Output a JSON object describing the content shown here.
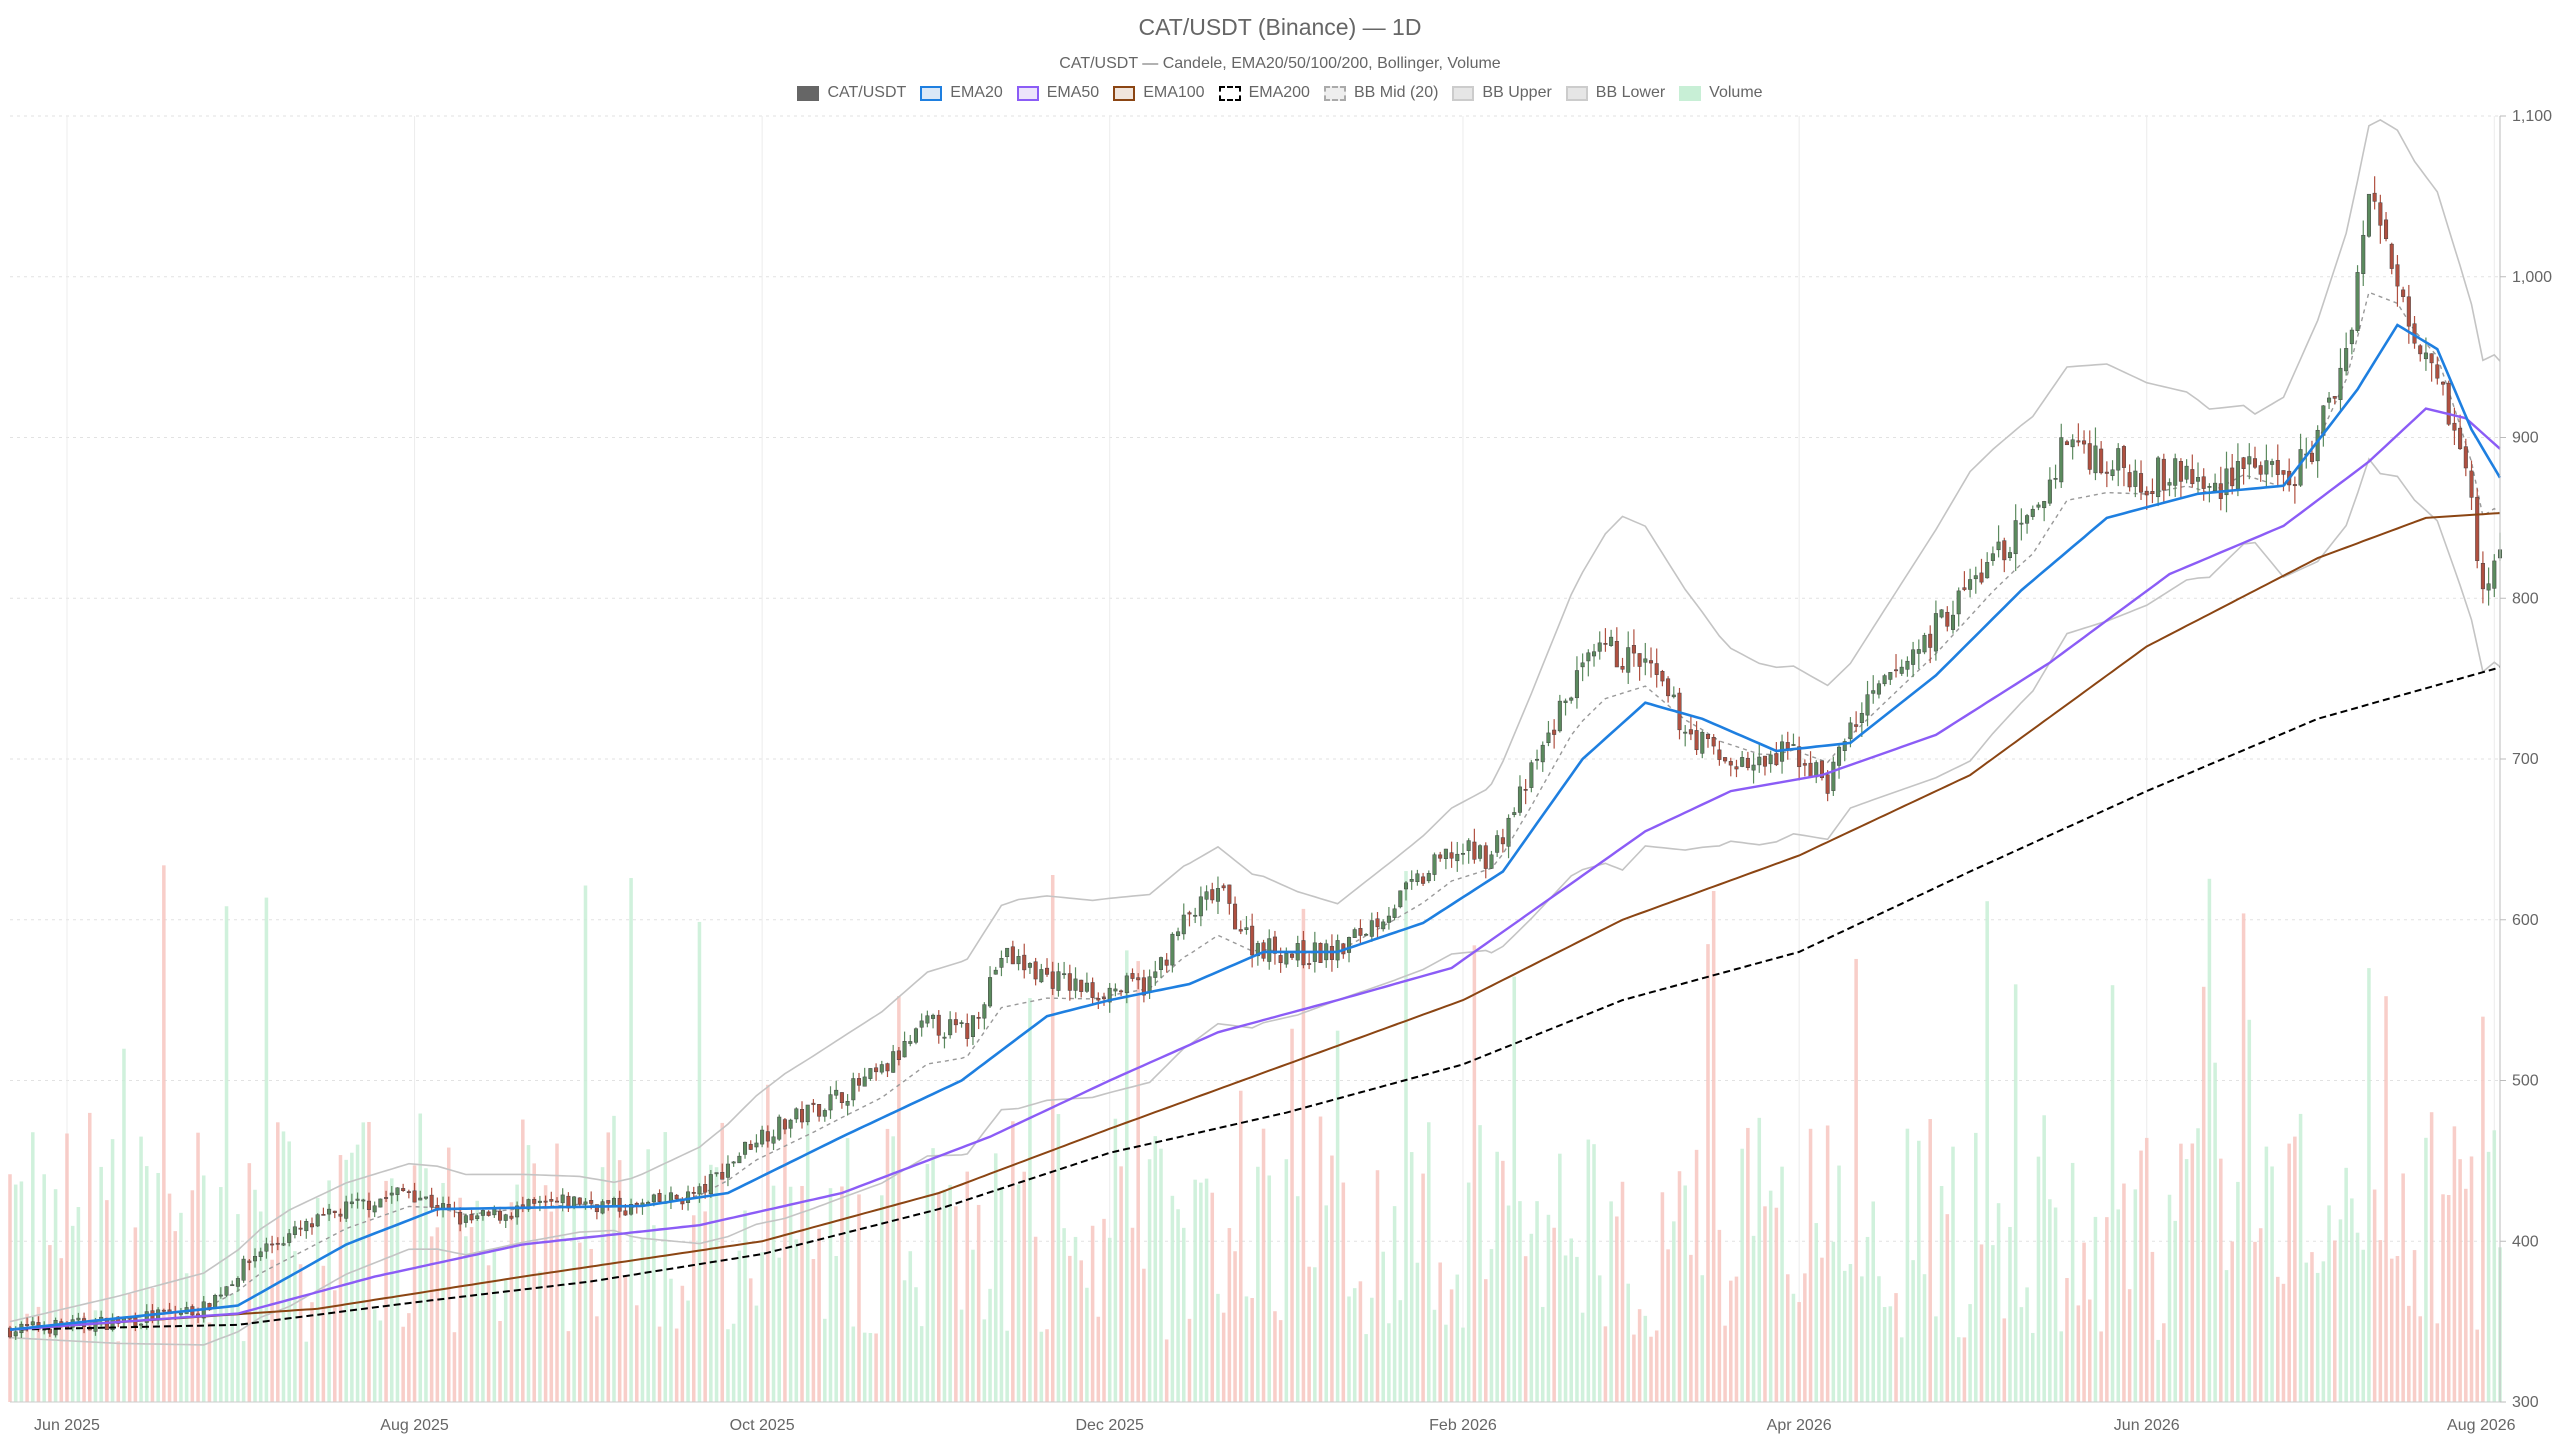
{
  "chart_data": {
    "type": "candlestick",
    "title": "CAT/USDT (Binance) — 1D",
    "subtitle": "CAT/USDT — Candele, EMA20/50/100/200, Bollinger, Volume",
    "ylim": [
      300,
      1100
    ],
    "y_ticks": [
      "300",
      "400",
      "500",
      "600",
      "700",
      "800",
      "900",
      "1,000",
      "1,100"
    ],
    "y_axis_position": "right",
    "x_ticks": [
      "Jun 2025",
      "Aug 2025",
      "Oct 2025",
      "Dec 2025",
      "Feb 2026",
      "Apr 2026",
      "Jun 2026",
      "Aug 2026"
    ],
    "x_range": [
      "2025-05-22",
      "2026-08-02"
    ],
    "grid": true,
    "legend_position": "top-center",
    "legend": [
      {
        "name": "CAT/USDT",
        "fill": "#666666",
        "border": "#666666",
        "dashed": false
      },
      {
        "name": "EMA20",
        "fill": "#dbe8f7",
        "border": "#1e7fe0",
        "dashed": false
      },
      {
        "name": "EMA50",
        "fill": "#ece4fb",
        "border": "#8b5cf6",
        "dashed": false
      },
      {
        "name": "EMA100",
        "fill": "#f1e5dc",
        "border": "#8b4513",
        "dashed": false
      },
      {
        "name": "EMA200",
        "fill": "#ffffff",
        "border": "#000000",
        "dashed": true
      },
      {
        "name": "BB Mid (20)",
        "fill": "#eeeeee",
        "border": "#aaaaaa",
        "dashed": true
      },
      {
        "name": "BB Upper",
        "fill": "#e6e6e6",
        "border": "#cccccc",
        "dashed": false
      },
      {
        "name": "BB Lower",
        "fill": "#e6e6e6",
        "border": "#cccccc",
        "dashed": false
      },
      {
        "name": "Volume",
        "fill": "#c8efd6",
        "border": "#c8efd6",
        "dashed": false
      }
    ],
    "colors": {
      "up": "#5b8a5e",
      "down": "#b05040",
      "volume_up": "#c8efd6",
      "volume_down": "#f7c6c0",
      "ema20": "#1e7fe0",
      "ema50": "#8b5cf6",
      "ema100": "#8b4513",
      "ema200": "#000000",
      "bb_mid": "#999999",
      "bb_band": "#c4c4c4"
    },
    "close_anchors": [
      [
        "2025-05-22",
        345
      ],
      [
        "2025-06-10",
        350
      ],
      [
        "2025-06-25",
        358
      ],
      [
        "2025-07-05",
        395
      ],
      [
        "2025-07-20",
        420
      ],
      [
        "2025-07-31",
        432
      ],
      [
        "2025-08-10",
        412
      ],
      [
        "2025-08-20",
        420
      ],
      [
        "2025-08-30",
        425
      ],
      [
        "2025-09-08",
        420
      ],
      [
        "2025-09-20",
        430
      ],
      [
        "2025-09-30",
        465
      ],
      [
        "2025-10-10",
        482
      ],
      [
        "2025-10-22",
        505
      ],
      [
        "2025-10-30",
        535
      ],
      [
        "2025-11-06",
        530
      ],
      [
        "2025-11-12",
        578
      ],
      [
        "2025-11-20",
        565
      ],
      [
        "2025-11-28",
        555
      ],
      [
        "2025-12-08",
        560
      ],
      [
        "2025-12-14",
        598
      ],
      [
        "2025-12-20",
        618
      ],
      [
        "2025-12-26",
        585
      ],
      [
        "2026-01-03",
        578
      ],
      [
        "2026-01-10",
        580
      ],
      [
        "2026-01-20",
        610
      ],
      [
        "2026-01-30",
        642
      ],
      [
        "2026-02-06",
        640
      ],
      [
        "2026-02-13",
        690
      ],
      [
        "2026-02-20",
        745
      ],
      [
        "2026-02-26",
        768
      ],
      [
        "2026-03-05",
        758
      ],
      [
        "2026-03-12",
        720
      ],
      [
        "2026-03-18",
        700
      ],
      [
        "2026-03-25",
        695
      ],
      [
        "2026-03-31",
        705
      ],
      [
        "2026-04-06",
        685
      ],
      [
        "2026-04-10",
        720
      ],
      [
        "2026-04-16",
        745
      ],
      [
        "2026-04-25",
        782
      ],
      [
        "2026-05-05",
        825
      ],
      [
        "2026-05-12",
        848
      ],
      [
        "2026-05-18",
        900
      ],
      [
        "2026-05-25",
        885
      ],
      [
        "2026-06-01",
        875
      ],
      [
        "2026-06-08",
        878
      ],
      [
        "2026-06-12",
        865
      ],
      [
        "2026-06-18",
        888
      ],
      [
        "2026-06-25",
        868
      ],
      [
        "2026-07-01",
        898
      ],
      [
        "2026-07-06",
        955
      ],
      [
        "2026-07-10",
        1050
      ],
      [
        "2026-07-14",
        1010
      ],
      [
        "2026-07-18",
        970
      ],
      [
        "2026-07-22",
        945
      ],
      [
        "2026-07-26",
        890
      ],
      [
        "2026-07-28",
        860
      ],
      [
        "2026-07-30",
        800
      ],
      [
        "2026-08-01",
        825
      ]
    ],
    "ema20_anchors": [
      [
        "2025-05-22",
        345
      ],
      [
        "2025-07-01",
        360
      ],
      [
        "2025-07-20",
        398
      ],
      [
        "2025-08-05",
        420
      ],
      [
        "2025-09-10",
        422
      ],
      [
        "2025-09-25",
        430
      ],
      [
        "2025-10-15",
        465
      ],
      [
        "2025-11-05",
        500
      ],
      [
        "2025-11-20",
        540
      ],
      [
        "2025-12-01",
        550
      ],
      [
        "2025-12-15",
        560
      ],
      [
        "2025-12-28",
        580
      ],
      [
        "2026-01-10",
        580
      ],
      [
        "2026-01-25",
        598
      ],
      [
        "2026-02-08",
        630
      ],
      [
        "2026-02-22",
        700
      ],
      [
        "2026-03-05",
        735
      ],
      [
        "2026-03-15",
        725
      ],
      [
        "2026-03-28",
        705
      ],
      [
        "2026-04-10",
        710
      ],
      [
        "2026-04-25",
        752
      ],
      [
        "2026-05-10",
        805
      ],
      [
        "2026-05-25",
        850
      ],
      [
        "2026-06-10",
        865
      ],
      [
        "2026-06-25",
        870
      ],
      [
        "2026-07-08",
        930
      ],
      [
        "2026-07-15",
        970
      ],
      [
        "2026-07-22",
        955
      ],
      [
        "2026-07-28",
        905
      ],
      [
        "2026-08-02",
        875
      ]
    ],
    "ema50_anchors": [
      [
        "2025-05-22",
        345
      ],
      [
        "2025-07-01",
        355
      ],
      [
        "2025-07-25",
        378
      ],
      [
        "2025-08-20",
        398
      ],
      [
        "2025-09-20",
        410
      ],
      [
        "2025-10-15",
        430
      ],
      [
        "2025-11-10",
        465
      ],
      [
        "2025-12-01",
        500
      ],
      [
        "2025-12-20",
        530
      ],
      [
        "2026-01-10",
        550
      ],
      [
        "2026-01-30",
        570
      ],
      [
        "2026-02-15",
        610
      ],
      [
        "2026-03-05",
        655
      ],
      [
        "2026-03-20",
        680
      ],
      [
        "2026-04-05",
        690
      ],
      [
        "2026-04-25",
        715
      ],
      [
        "2026-05-15",
        760
      ],
      [
        "2026-06-05",
        815
      ],
      [
        "2026-06-25",
        845
      ],
      [
        "2026-07-10",
        885
      ],
      [
        "2026-07-20",
        918
      ],
      [
        "2026-07-27",
        912
      ],
      [
        "2026-08-02",
        893
      ]
    ],
    "ema100_anchors": [
      [
        "2025-05-22",
        345
      ],
      [
        "2025-07-15",
        358
      ],
      [
        "2025-08-20",
        378
      ],
      [
        "2025-10-01",
        400
      ],
      [
        "2025-11-01",
        430
      ],
      [
        "2025-12-01",
        470
      ],
      [
        "2026-01-01",
        510
      ],
      [
        "2026-02-01",
        550
      ],
      [
        "2026-03-01",
        600
      ],
      [
        "2026-04-01",
        640
      ],
      [
        "2026-05-01",
        690
      ],
      [
        "2026-06-01",
        770
      ],
      [
        "2026-07-01",
        825
      ],
      [
        "2026-07-20",
        850
      ],
      [
        "2026-08-02",
        853
      ]
    ],
    "ema200_anchors": [
      [
        "2025-05-22",
        345
      ],
      [
        "2025-07-01",
        348
      ],
      [
        "2025-08-01",
        362
      ],
      [
        "2025-09-01",
        375
      ],
      [
        "2025-10-01",
        392
      ],
      [
        "2025-11-01",
        420
      ],
      [
        "2025-12-01",
        455
      ],
      [
        "2026-01-01",
        480
      ],
      [
        "2026-02-01",
        510
      ],
      [
        "2026-03-01",
        550
      ],
      [
        "2026-04-01",
        580
      ],
      [
        "2026-05-01",
        630
      ],
      [
        "2026-06-01",
        680
      ],
      [
        "2026-07-01",
        725
      ],
      [
        "2026-08-02",
        757
      ]
    ],
    "bb_width_anchors": [
      [
        "2025-05-22",
        5
      ],
      [
        "2025-07-10",
        30
      ],
      [
        "2025-08-10",
        25
      ],
      [
        "2025-09-05",
        15
      ],
      [
        "2025-10-05",
        45
      ],
      [
        "2025-11-15",
        65
      ],
      [
        "2025-12-20",
        55
      ],
      [
        "2026-01-10",
        30
      ],
      [
        "2026-02-05",
        50
      ],
      [
        "2026-03-01",
        110
      ],
      [
        "2026-03-20",
        60
      ],
      [
        "2026-04-10",
        45
      ],
      [
        "2026-05-01",
        90
      ],
      [
        "2026-05-25",
        80
      ],
      [
        "2026-06-20",
        40
      ],
      [
        "2026-07-12",
        110
      ],
      [
        "2026-07-25",
        100
      ],
      [
        "2026-08-02",
        95
      ]
    ],
    "volume_note": "Volume bars overlay the price pane from the bottom; up days green, down days red"
  }
}
